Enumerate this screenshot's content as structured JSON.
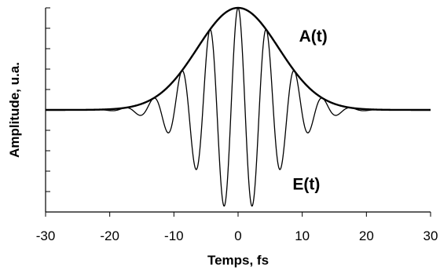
{
  "chart_data": {
    "type": "line",
    "title": "",
    "xlabel": "Temps, fs",
    "ylabel": "Amplitude, u.a.",
    "xlim": [
      -30,
      30
    ],
    "ylim": [
      -1,
      1
    ],
    "x_ticks": [
      -30,
      -20,
      -10,
      0,
      10,
      20,
      30
    ],
    "x_tick_labels": [
      "-30",
      "-20",
      "-10",
      "0",
      "10",
      "20",
      "30"
    ],
    "y_tick_count": 10,
    "y_tick_labels_shown": false,
    "grid": false,
    "legend": "none",
    "series": [
      {
        "name": "A(t)",
        "kind": "envelope",
        "model": "gaussian",
        "peak": 1.0,
        "center": 0,
        "fwhm": 14.9,
        "sampled": {
          "x": [
            -20,
            -15,
            -10,
            -5,
            0,
            5,
            10,
            15,
            20
          ],
          "y": [
            0.01,
            0.07,
            0.29,
            0.73,
            1.0,
            0.73,
            0.29,
            0.07,
            0.01
          ]
        }
      },
      {
        "name": "E(t)",
        "kind": "carrier",
        "model": "gaussian * cos",
        "period": 4.4,
        "envelope": "A(t)",
        "peaks": {
          "x": [
            0,
            2.2,
            4.4,
            6.6,
            8.8,
            11.0,
            13.2
          ],
          "y": [
            1.0,
            -0.95,
            0.81,
            -0.62,
            0.43,
            -0.26,
            0.14
          ]
        }
      }
    ],
    "annotations": [
      {
        "text": "A(t)",
        "x": 9.5,
        "y": 0.67
      },
      {
        "text": "E(t)",
        "x": 8.5,
        "y": -0.78
      }
    ]
  }
}
